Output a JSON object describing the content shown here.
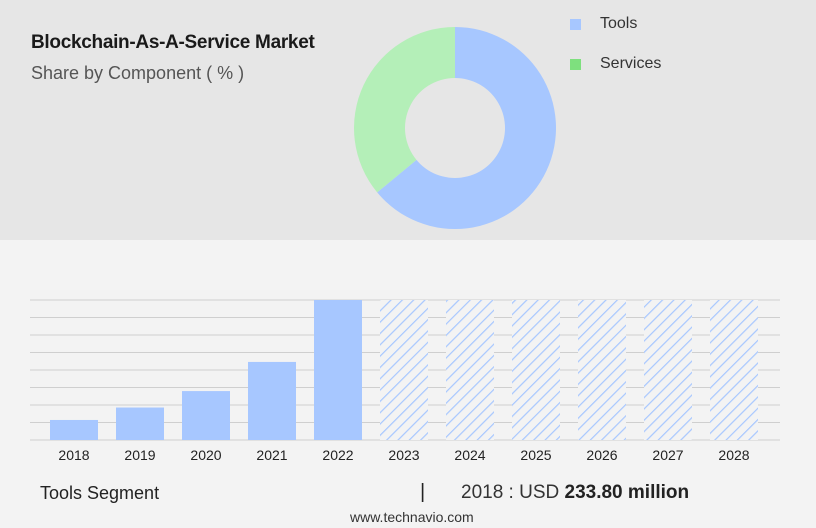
{
  "header": {
    "title": "Blockchain-As-A-Service Market",
    "subtitle": "Share by Component ( % )"
  },
  "colors": {
    "tools": "#a7c7ff",
    "services": "#b4efb8",
    "services_legend": "#7ee07e",
    "bar": "#a7c7ff"
  },
  "chart_data": [
    {
      "type": "pie",
      "title": "",
      "donut": true,
      "categories": [
        "Tools",
        "Services"
      ],
      "values": [
        64,
        36
      ],
      "legend": "right"
    },
    {
      "type": "bar",
      "title": "",
      "categories": [
        "2018",
        "2019",
        "2020",
        "2021",
        "2022",
        "2023",
        "2024",
        "2025",
        "2026",
        "2027",
        "2028"
      ],
      "values": [
        233.8,
        379,
        571,
        911,
        1634,
        1634,
        1634,
        1634,
        1634,
        1634,
        1634
      ],
      "forecast": [
        false,
        false,
        false,
        false,
        false,
        true,
        true,
        true,
        true,
        true,
        true
      ],
      "ylim": [
        0,
        1634
      ],
      "grid": true,
      "xlabel": "",
      "ylabel": ""
    }
  ],
  "footer": {
    "segment": "Tools Segment",
    "divider": "|",
    "value_prefix": "2018 : USD",
    "value_amount": "233.80 million",
    "source": "www.technavio.com"
  }
}
